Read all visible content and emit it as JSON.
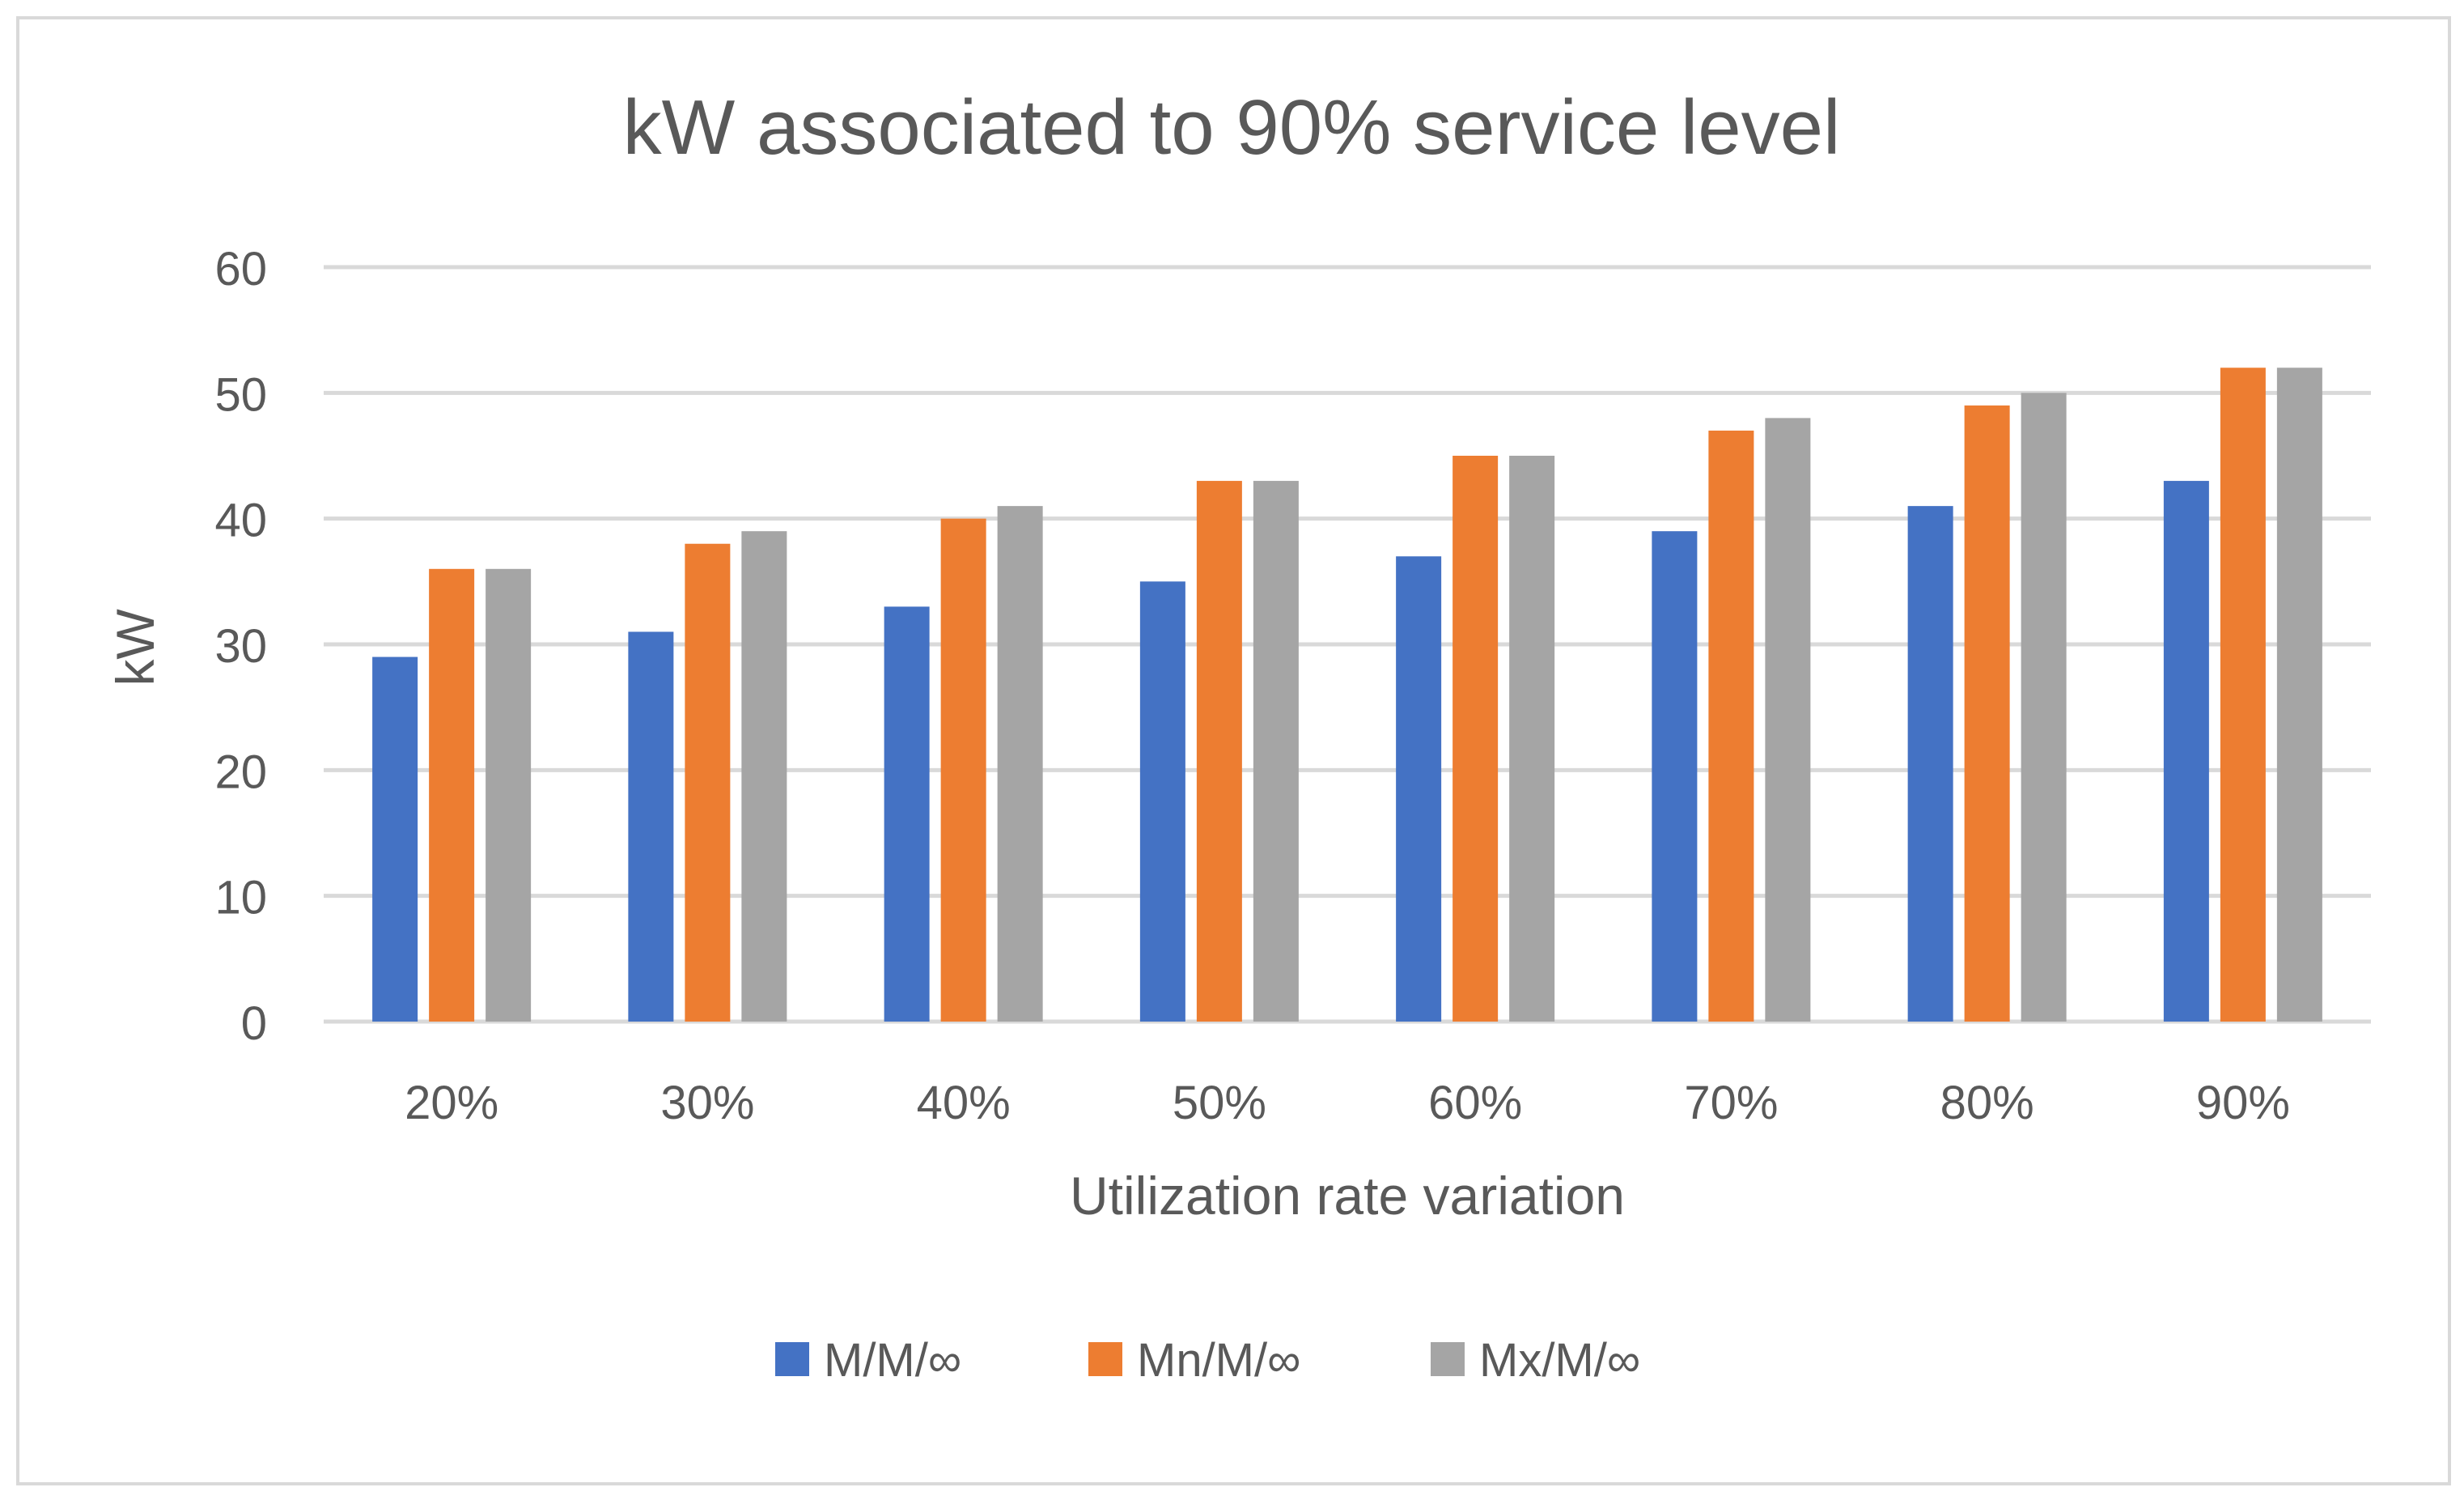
{
  "chart_data": {
    "type": "bar",
    "title": "kW associated to 90% service level",
    "xlabel": "Utilization rate variation",
    "ylabel": "kW",
    "ylim": [
      0,
      60
    ],
    "yticks": [
      0,
      10,
      20,
      30,
      40,
      50,
      60
    ],
    "grid": true,
    "legend_position": "bottom",
    "categories": [
      "20%",
      "30%",
      "40%",
      "50%",
      "60%",
      "70%",
      "80%",
      "90%"
    ],
    "series": [
      {
        "name": "M/M/∞",
        "color": "#4472c4",
        "values": [
          29,
          31,
          33,
          35,
          37,
          39,
          41,
          43
        ]
      },
      {
        "name": "Mn/M/∞",
        "color": "#ed7d31",
        "values": [
          36,
          38,
          40,
          43,
          45,
          47,
          49,
          52
        ]
      },
      {
        "name": "Mx/M/∞",
        "color": "#a5a5a5",
        "values": [
          36,
          39,
          41,
          43,
          45,
          48,
          50,
          52
        ]
      }
    ]
  }
}
